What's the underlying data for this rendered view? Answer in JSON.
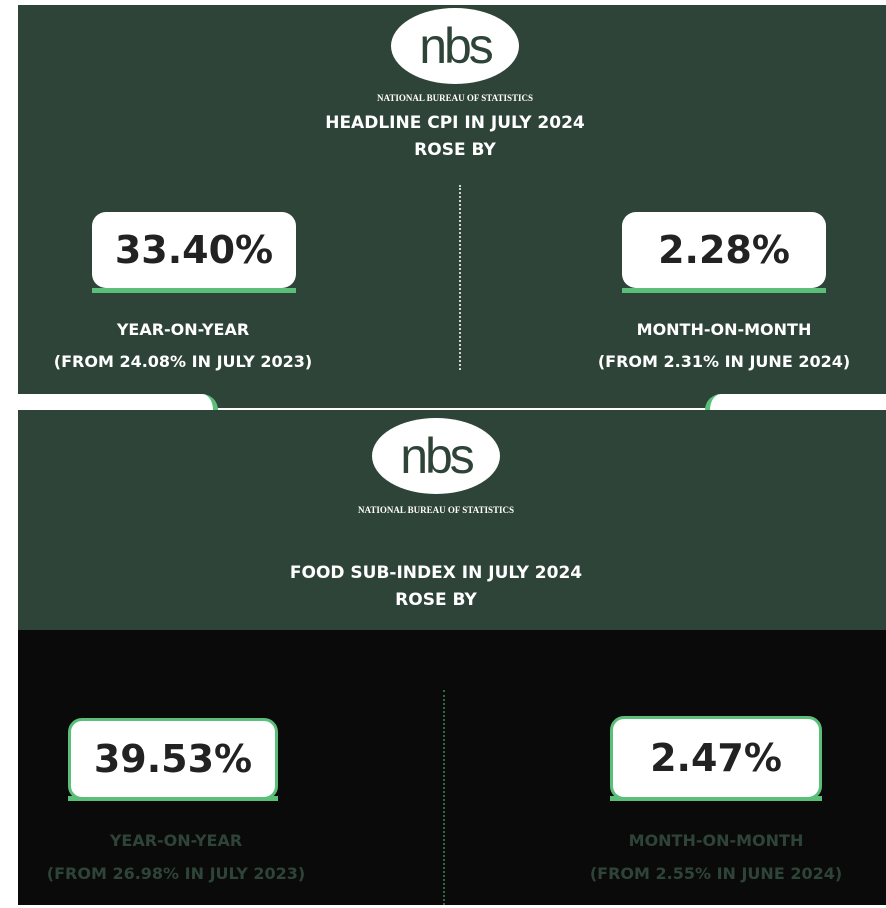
{
  "panels": [
    {
      "logo": "nbs",
      "org": "NATIONAL BUREAU OF STATISTICS",
      "title": [
        "HEADLINE CPI IN JULY 2024",
        "ROSE BY"
      ],
      "stats": [
        {
          "value": "33.40%",
          "label": "YEAR-ON-YEAR",
          "note": "(FROM 24.08% IN JULY 2023)"
        },
        {
          "value": "2.28%",
          "label": "MONTH-ON-MONTH",
          "note": "(FROM 2.31% IN JUNE 2024)"
        }
      ]
    },
    {
      "logo": "nbs",
      "org": "NATIONAL BUREAU OF STATISTICS",
      "title": [
        "FOOD SUB-INDEX IN JULY 2024",
        "ROSE BY"
      ],
      "stats": [
        {
          "value": "39.53%",
          "label": "YEAR-ON-YEAR",
          "note": "(FROM 26.98% IN JULY 2023)"
        },
        {
          "value": "2.47%",
          "label": "MONTH-ON-MONTH",
          "note": "(FROM 2.55% IN JUNE 2024)"
        }
      ]
    }
  ]
}
